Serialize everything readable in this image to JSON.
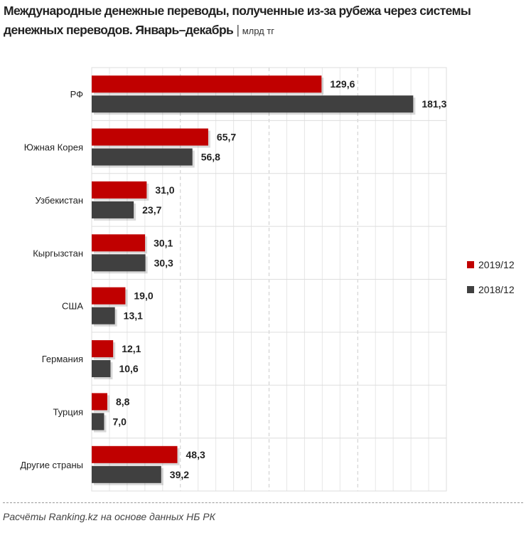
{
  "chart_data": {
    "type": "bar",
    "orientation": "horizontal",
    "title": "Международные денежные переводы, полученные из-за рубежа через системы денежных переводов. Январь–декабрь",
    "unit": "млрд тг",
    "categories": [
      "РФ",
      "Южная Корея",
      "Узбекистан",
      "Кыргызстан",
      "США",
      "Германия",
      "Турция",
      "Другие страны"
    ],
    "series": [
      {
        "name": "2019/12",
        "color": "#c00000",
        "values": [
          129.6,
          65.7,
          31.0,
          30.1,
          19.0,
          12.1,
          8.8,
          48.3
        ],
        "labels": [
          "129,6",
          "65,7",
          "31,0",
          "30,1",
          "19,0",
          "12,1",
          "8,8",
          "48,3"
        ]
      },
      {
        "name": "2018/12",
        "color": "#404040",
        "values": [
          181.3,
          56.8,
          23.7,
          30.3,
          13.1,
          10.6,
          7.0,
          39.2
        ],
        "labels": [
          "181,3",
          "56,8",
          "23,7",
          "30,3",
          "13,1",
          "10,6",
          "7,0",
          "39,2"
        ]
      }
    ],
    "xlim": [
      0,
      200
    ],
    "grid": true,
    "legend": "right",
    "tick_labels_shown": false
  },
  "source": "Расчёты Ranking.kz на основе данных НБ РК"
}
